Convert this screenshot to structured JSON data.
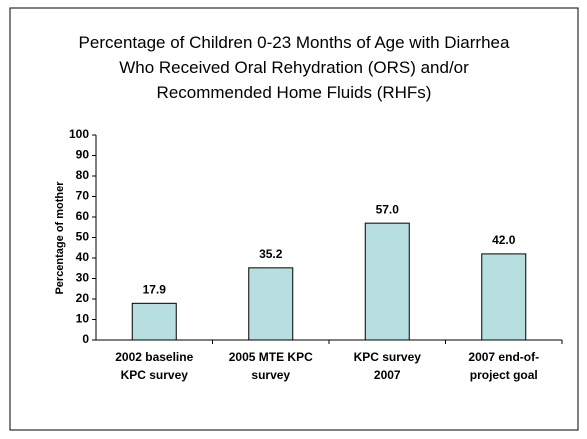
{
  "chart_data": {
    "type": "bar",
    "title": "Percentage of Children 0-23 Months of Age with Diarrhea\nWho Received Oral Rehydration (ORS) and/or\nRecommended Home Fluids (RHFs)",
    "y_label": "Percentage of mother",
    "categories": [
      "2002 baseline\nKPC survey",
      "2005 MTE KPC\nsurvey",
      "KPC survey\n2007",
      "2007 end-of-\nproject goal"
    ],
    "values": [
      17.9,
      35.2,
      57.0,
      42.0
    ],
    "value_labels": [
      "17.9",
      "35.2",
      "57.0",
      "42.0"
    ],
    "color": "#b7dfe0",
    "ylim": [
      0,
      100
    ],
    "yticks": [
      0,
      10,
      20,
      30,
      40,
      50,
      60,
      70,
      80,
      90,
      100
    ]
  }
}
